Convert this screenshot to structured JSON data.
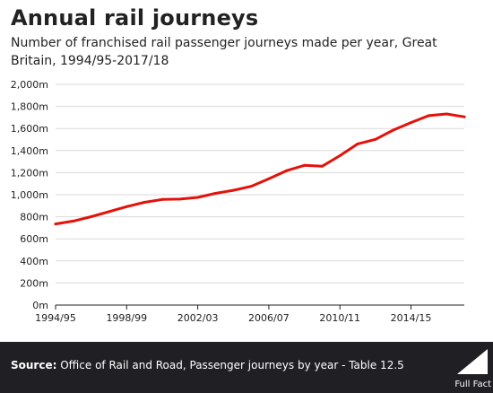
{
  "title": "Annual rail journeys",
  "subtitle": "Number of franchised rail passenger journeys made per year, Great Britain, 1994/95-2017/18",
  "footer": {
    "source_label": "Source:",
    "source_text": "Office of Rail and Road, Passenger journeys by year - Table 12.5",
    "logo_text": "Full Fact"
  },
  "colors": {
    "line": "#e3120b",
    "footer_bg": "#1f1f24",
    "grid": "#d9d9d9"
  },
  "chart_data": {
    "type": "line",
    "title": "Annual rail journeys",
    "xlabel": "",
    "ylabel": "",
    "x": [
      "1994/95",
      "1995/96",
      "1996/97",
      "1997/98",
      "1998/99",
      "1999/00",
      "2000/01",
      "2001/02",
      "2002/03",
      "2003/04",
      "2004/05",
      "2005/06",
      "2006/07",
      "2007/08",
      "2008/09",
      "2009/10",
      "2010/11",
      "2011/12",
      "2012/13",
      "2013/14",
      "2014/15",
      "2015/16",
      "2016/17",
      "2017/18"
    ],
    "x_tick_labels": [
      "1994/95",
      "1998/99",
      "2002/03",
      "2006/07",
      "2010/11",
      "2014/15"
    ],
    "series": [
      {
        "values": [
          735,
          761,
          801,
          846,
          892,
          931,
          957,
          960,
          976,
          1012,
          1040,
          1076,
          1145,
          1218,
          1266,
          1258,
          1354,
          1460,
          1502,
          1585,
          1654,
          1716,
          1732,
          1706
        ]
      }
    ],
    "ylim": [
      0,
      2000
    ],
    "y_ticks": [
      0,
      200,
      400,
      600,
      800,
      1000,
      1200,
      1400,
      1600,
      1800,
      2000
    ],
    "y_tick_labels": [
      "0m",
      "200m",
      "400m",
      "600m",
      "800m",
      "1,000m",
      "1,200m",
      "1,400m",
      "1,600m",
      "1,800m",
      "2,000m"
    ],
    "grid": "horizontal"
  }
}
